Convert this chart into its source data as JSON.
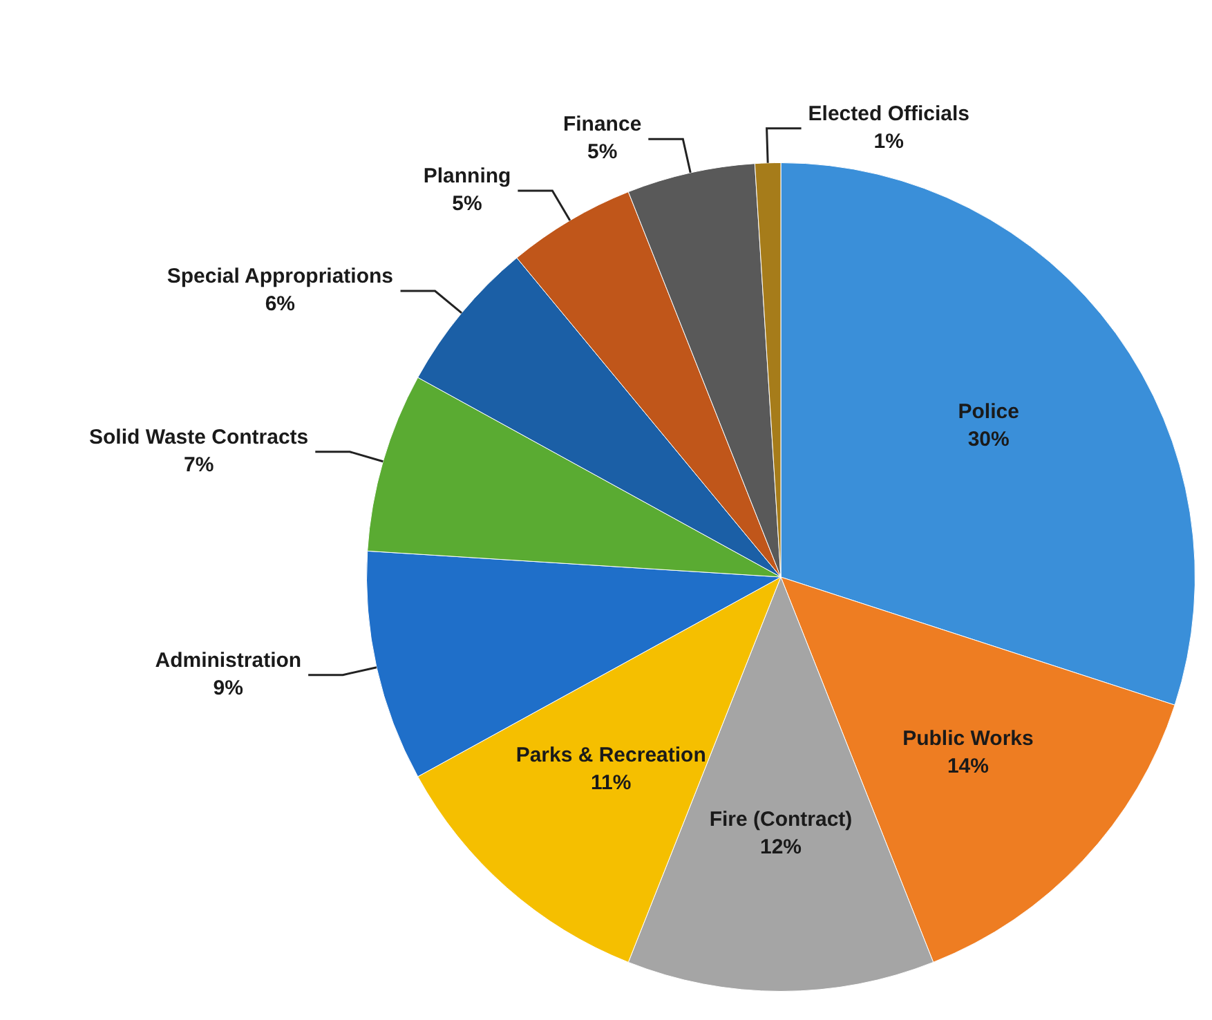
{
  "chart_data": {
    "type": "pie",
    "categories": [
      "Police",
      "Public Works",
      "Fire (Contract)",
      "Parks & Recreation",
      "Administration",
      "Solid Waste Contracts",
      "Special Appropriations",
      "Planning",
      "Finance",
      "Elected Officials"
    ],
    "values": [
      30,
      14,
      12,
      11,
      9,
      7,
      6,
      5,
      5,
      1
    ],
    "value_labels": [
      "30%",
      "14%",
      "12%",
      "11%",
      "9%",
      "7%",
      "6%",
      "5%",
      "5%",
      "1%"
    ],
    "colors": [
      "#3a8fd9",
      "#ee7d22",
      "#a5a5a5",
      "#f5bf00",
      "#1f6fc9",
      "#5aab32",
      "#1b5fa6",
      "#c0561a",
      "#595959",
      "#a67c1a"
    ],
    "legend": false
  }
}
